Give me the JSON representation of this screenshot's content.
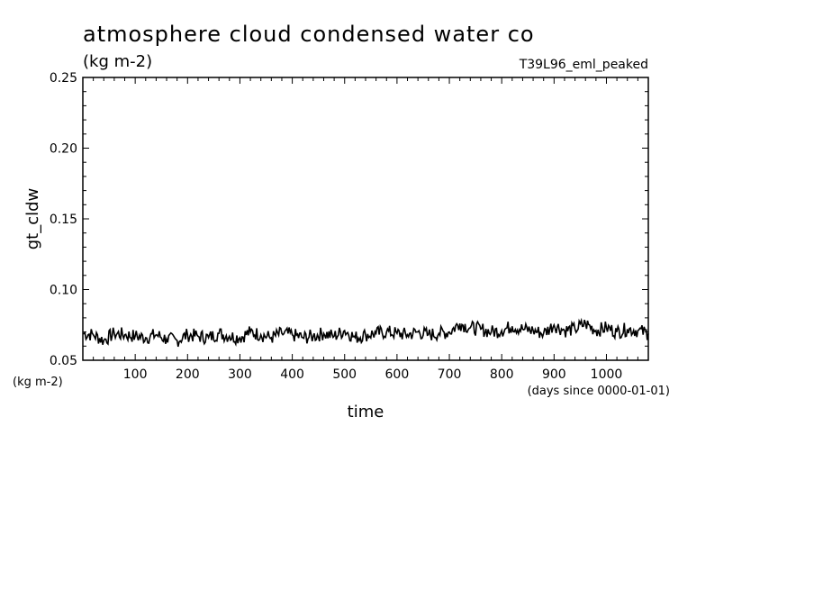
{
  "chart_data": {
    "type": "line",
    "title": "atmosphere cloud condensed water co",
    "subtitle": "(kg m-2)",
    "run_label": "T39L96_eml_peaked",
    "ylabel": "gt_cldw",
    "y_unit_label": "(kg m-2)",
    "xlabel": "time",
    "x_unit_label": "(days since 0000-01-01)",
    "xlim": [
      0,
      1080
    ],
    "ylim": [
      0.05,
      0.25
    ],
    "x_ticks": [
      100,
      200,
      300,
      400,
      500,
      600,
      700,
      800,
      900,
      1000
    ],
    "y_ticks": [
      "0.05",
      "0.10",
      "0.15",
      "0.20",
      "0.25"
    ],
    "grid": false,
    "line_color": "#000000",
    "series": [
      {
        "x": [
          0,
          20,
          40,
          60,
          80,
          100,
          120,
          140,
          160,
          180,
          200,
          220,
          240,
          260,
          280,
          300,
          320,
          340,
          360,
          380,
          400,
          420,
          440,
          460,
          480,
          500,
          520,
          540,
          560,
          580,
          600,
          620,
          640,
          660,
          680,
          700,
          720,
          740,
          760,
          780,
          800,
          820,
          840,
          860,
          880,
          900,
          920,
          940,
          960,
          980,
          1000,
          1020,
          1040,
          1060,
          1080
        ],
        "y": [
          0.069,
          0.068,
          0.064,
          0.069,
          0.068,
          0.067,
          0.066,
          0.068,
          0.065,
          0.064,
          0.068,
          0.067,
          0.066,
          0.069,
          0.067,
          0.066,
          0.07,
          0.068,
          0.066,
          0.069,
          0.068,
          0.066,
          0.067,
          0.069,
          0.067,
          0.071,
          0.066,
          0.068,
          0.069,
          0.07,
          0.069,
          0.068,
          0.07,
          0.068,
          0.069,
          0.07,
          0.076,
          0.073,
          0.072,
          0.07,
          0.071,
          0.074,
          0.072,
          0.071,
          0.069,
          0.075,
          0.071,
          0.072,
          0.076,
          0.071,
          0.073,
          0.07,
          0.072,
          0.071,
          0.069
        ]
      }
    ]
  }
}
